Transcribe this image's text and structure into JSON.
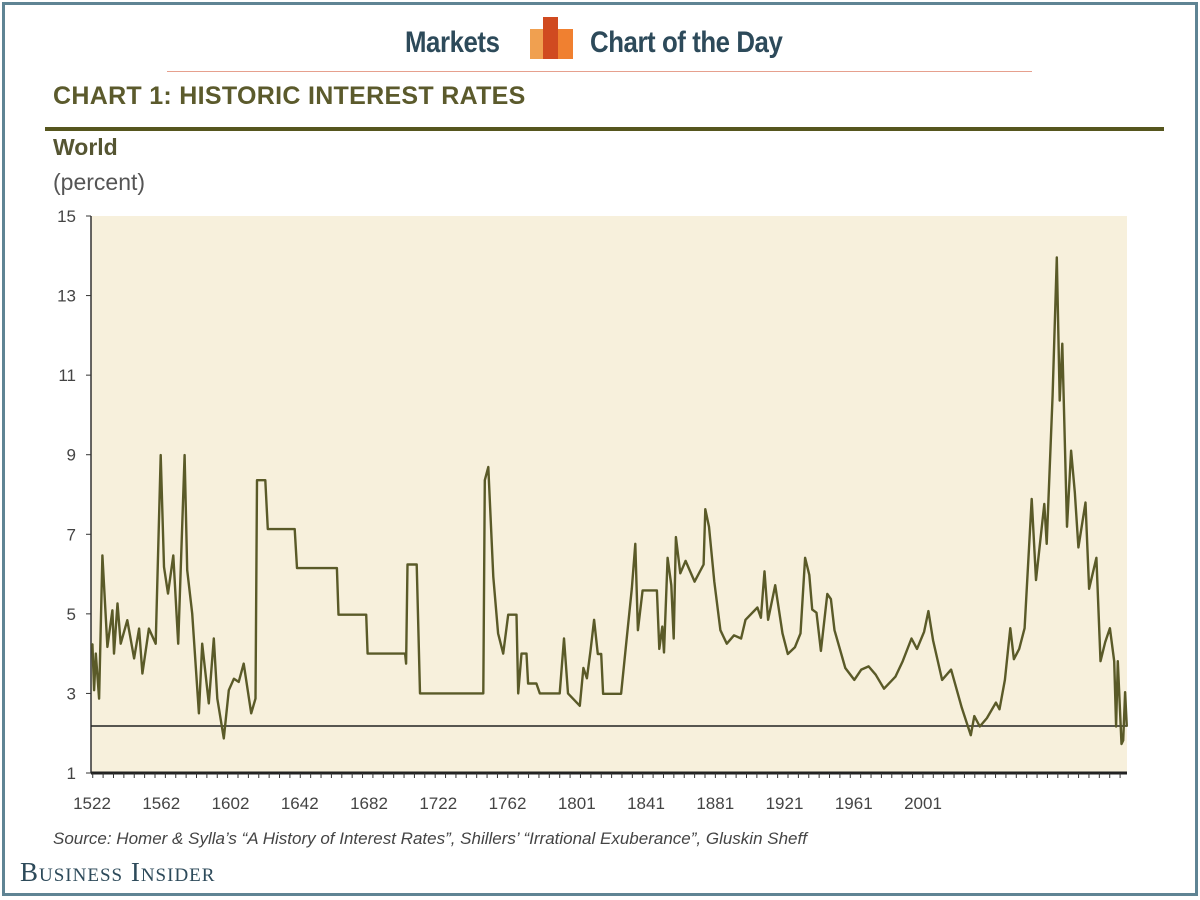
{
  "header": {
    "left": "Markets",
    "right": "Chart of the Day",
    "logo_colors": [
      "#f0a050",
      "#d04a20",
      "#f08030"
    ]
  },
  "footer": {
    "source": "Source: Homer & Sylla’s “A History of Interest Rates”, Shillers’ “Irrational Exuberance”, Gluskin Sheff",
    "brand": "Business Insider"
  },
  "colors": {
    "line": "#5a5a28",
    "plot_bg": "#f7f0dc",
    "frame": "#5f8494",
    "title": "#5b5a2c"
  },
  "chart_data": {
    "type": "line",
    "title": "CHART 1: HISTORIC INTEREST RATES",
    "subtitle": "World",
    "ylabel": "(percent)",
    "xlabel": "",
    "ylim": [
      1,
      15
    ],
    "xlim": [
      1521,
      2120
    ],
    "yticks": [
      "15",
      "13",
      "11",
      "9",
      "7",
      "5",
      "3",
      "1"
    ],
    "xticks": [
      "1522",
      "1562",
      "1602",
      "1642",
      "1682",
      "1722",
      "1762",
      "1801",
      "1841",
      "1881",
      "1921",
      "1961",
      "2001"
    ],
    "grid": false,
    "reference_line": 2.18,
    "series": [
      {
        "points": [
          [
            1521.8,
            4.25
          ],
          [
            1522.8,
            3.08
          ],
          [
            1523.8,
            4.0
          ],
          [
            1525.7,
            2.87
          ],
          [
            1527.6,
            6.47
          ],
          [
            1530.5,
            4.17
          ],
          [
            1533.4,
            5.09
          ],
          [
            1534.3,
            4.0
          ],
          [
            1536.3,
            5.26
          ],
          [
            1538.2,
            4.25
          ],
          [
            1542.0,
            4.84
          ],
          [
            1545.9,
            3.88
          ],
          [
            1548.8,
            4.63
          ],
          [
            1550.7,
            3.5
          ],
          [
            1554.5,
            4.63
          ],
          [
            1558.4,
            4.25
          ],
          [
            1561.3,
            8.99
          ],
          [
            1563.2,
            6.18
          ],
          [
            1565.5,
            5.51
          ],
          [
            1568.6,
            6.47
          ],
          [
            1571.4,
            4.25
          ],
          [
            1575.1,
            8.99
          ],
          [
            1576.6,
            6.1
          ],
          [
            1579.5,
            5.01
          ],
          [
            1583.4,
            2.5
          ],
          [
            1585.3,
            4.25
          ],
          [
            1589.1,
            2.75
          ],
          [
            1592.0,
            4.38
          ],
          [
            1594.0,
            2.87
          ],
          [
            1597.8,
            1.87
          ],
          [
            1600.7,
            3.08
          ],
          [
            1603.6,
            3.37
          ],
          [
            1606.4,
            3.29
          ],
          [
            1609.3,
            3.75
          ],
          [
            1613.6,
            2.5
          ],
          [
            1616.1,
            2.87
          ],
          [
            1617.0,
            8.36
          ],
          [
            1621.8,
            8.36
          ],
          [
            1623.2,
            7.13
          ],
          [
            1638.8,
            7.13
          ],
          [
            1640.1,
            6.15
          ],
          [
            1663.2,
            6.15
          ],
          [
            1664.1,
            4.98
          ],
          [
            1680.1,
            4.98
          ],
          [
            1680.9,
            4.0
          ],
          [
            1702.6,
            4.0
          ],
          [
            1703.2,
            3.75
          ],
          [
            1704.0,
            6.24
          ],
          [
            1709.3,
            6.24
          ],
          [
            1711.2,
            3.0
          ],
          [
            1747.8,
            3.0
          ],
          [
            1748.7,
            8.36
          ],
          [
            1750.7,
            8.69
          ],
          [
            1753.6,
            5.93
          ],
          [
            1756.4,
            4.51
          ],
          [
            1759.3,
            4.0
          ],
          [
            1762.2,
            4.98
          ],
          [
            1767.0,
            4.98
          ],
          [
            1768.0,
            3.0
          ],
          [
            1769.9,
            4.0
          ],
          [
            1772.8,
            4.0
          ],
          [
            1773.7,
            3.25
          ],
          [
            1778.5,
            3.25
          ],
          [
            1780.5,
            3.0
          ],
          [
            1792.0,
            3.0
          ],
          [
            1794.5,
            4.38
          ],
          [
            1796.8,
            3.0
          ],
          [
            1803.6,
            2.69
          ],
          [
            1805.7,
            3.64
          ],
          [
            1807.7,
            3.38
          ],
          [
            1809.8,
            4.07
          ],
          [
            1811.9,
            4.85
          ],
          [
            1814.0,
            3.99
          ],
          [
            1816.0,
            3.99
          ],
          [
            1817.1,
            2.99
          ],
          [
            1827.5,
            2.99
          ],
          [
            1830.6,
            4.33
          ],
          [
            1833.7,
            5.63
          ],
          [
            1835.7,
            6.76
          ],
          [
            1837.2,
            4.59
          ],
          [
            1839.9,
            5.59
          ],
          [
            1848.2,
            5.59
          ],
          [
            1849.6,
            4.12
          ],
          [
            1851.3,
            4.68
          ],
          [
            1852.3,
            4.03
          ],
          [
            1854.4,
            6.41
          ],
          [
            1856.5,
            5.72
          ],
          [
            1857.9,
            4.38
          ],
          [
            1859.2,
            6.93
          ],
          [
            1861.7,
            6.02
          ],
          [
            1864.8,
            6.33
          ],
          [
            1870.0,
            5.81
          ],
          [
            1875.2,
            6.24
          ],
          [
            1876.2,
            7.63
          ],
          [
            1878.3,
            7.19
          ],
          [
            1881.4,
            5.81
          ],
          [
            1884.9,
            4.59
          ],
          [
            1888.6,
            4.25
          ],
          [
            1892.8,
            4.46
          ],
          [
            1896.9,
            4.38
          ],
          [
            1899.4,
            4.85
          ],
          [
            1906.3,
            5.16
          ],
          [
            1908.3,
            4.9
          ],
          [
            1910.4,
            6.07
          ],
          [
            1912.5,
            4.85
          ],
          [
            1916.6,
            5.72
          ],
          [
            1920.8,
            4.51
          ],
          [
            1923.9,
            3.99
          ],
          [
            1928.0,
            4.16
          ],
          [
            1931.2,
            4.51
          ],
          [
            1933.9,
            6.41
          ],
          [
            1936.3,
            5.98
          ],
          [
            1938.0,
            5.11
          ],
          [
            1940.5,
            5.03
          ],
          [
            1943.0,
            4.07
          ],
          [
            1946.7,
            5.5
          ],
          [
            1948.8,
            5.37
          ],
          [
            1950.9,
            4.59
          ],
          [
            1957.1,
            3.64
          ],
          [
            1962.3,
            3.34
          ],
          [
            1966.4,
            3.6
          ],
          [
            1970.6,
            3.68
          ],
          [
            1974.7,
            3.47
          ],
          [
            1979.5,
            3.12
          ],
          [
            1986.1,
            3.42
          ],
          [
            1990.3,
            3.81
          ],
          [
            1995.4,
            4.38
          ],
          [
            1998.6,
            4.12
          ],
          [
            2002.7,
            4.55
          ],
          [
            2005.2,
            5.07
          ],
          [
            2007.9,
            4.33
          ],
          [
            2013.1,
            3.34
          ],
          [
            2018.3,
            3.6
          ],
          [
            2024.5,
            2.64
          ],
          [
            2029.7,
            1.95
          ],
          [
            2031.7,
            2.43
          ],
          [
            2034.9,
            2.17
          ],
          [
            2039.0,
            2.38
          ],
          [
            2044.2,
            2.77
          ],
          [
            2046.3,
            2.6
          ],
          [
            2049.4,
            3.34
          ],
          [
            2052.5,
            4.64
          ],
          [
            2054.6,
            3.86
          ],
          [
            2057.7,
            4.12
          ],
          [
            2060.8,
            4.64
          ],
          [
            2064.9,
            7.89
          ],
          [
            2067.4,
            5.85
          ],
          [
            2072.2,
            7.76
          ],
          [
            2073.6,
            6.76
          ],
          [
            2077.0,
            10.49
          ],
          [
            2079.4,
            13.96
          ],
          [
            2081.1,
            10.36
          ],
          [
            2082.6,
            11.79
          ],
          [
            2085.3,
            7.19
          ],
          [
            2087.7,
            9.1
          ],
          [
            2089.8,
            8.06
          ],
          [
            2091.9,
            6.67
          ],
          [
            2096.0,
            7.8
          ],
          [
            2098.1,
            5.63
          ],
          [
            2102.3,
            6.41
          ],
          [
            2104.7,
            3.81
          ],
          [
            2107.4,
            4.29
          ],
          [
            2110.1,
            4.64
          ],
          [
            2112.6,
            3.81
          ],
          [
            2113.7,
            2.17
          ],
          [
            2114.7,
            3.81
          ],
          [
            2116.8,
            1.73
          ],
          [
            2117.8,
            1.82
          ],
          [
            2118.9,
            3.03
          ],
          [
            2119.9,
            2.17
          ]
        ]
      }
    ]
  }
}
